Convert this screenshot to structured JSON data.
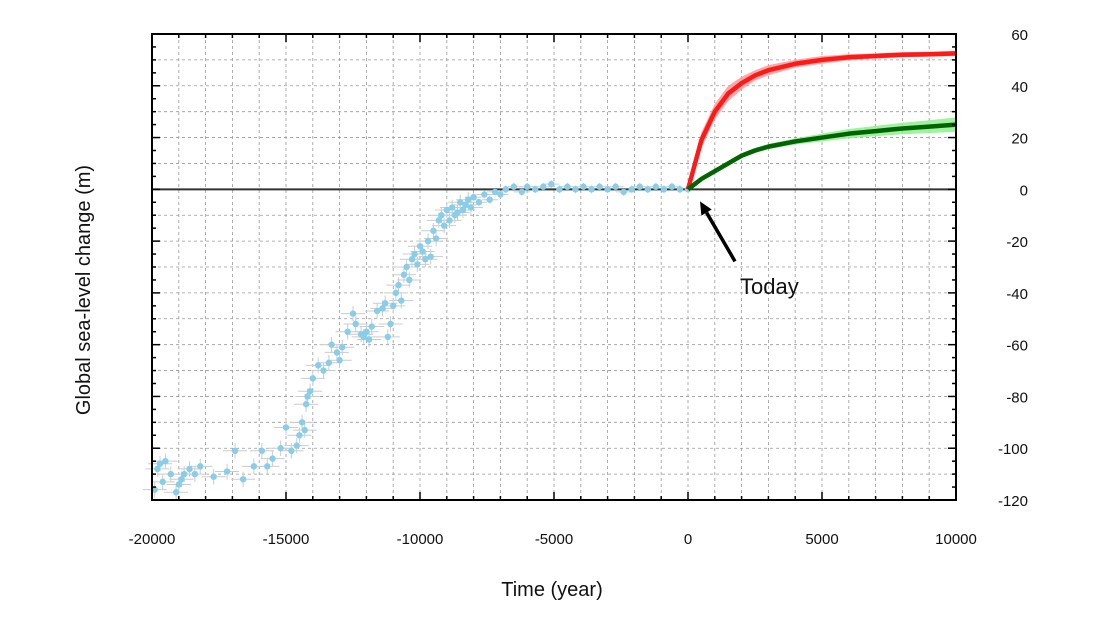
{
  "chart_data": {
    "type": "scatter",
    "xlabel": "Time (year)",
    "ylabel": "Global sea-level change (m)",
    "xlim": [
      -20000,
      10000
    ],
    "ylim": [
      -120,
      60
    ],
    "x_ticks": [
      -20000,
      -15000,
      -10000,
      -5000,
      0,
      5000,
      10000
    ],
    "y_ticks": [
      60,
      40,
      20,
      0,
      -20,
      -40,
      -60,
      -80,
      -100,
      -120
    ],
    "y_axis_side": "right",
    "grid": true,
    "annotation": {
      "text": "Today",
      "points_to": [
        0,
        0
      ]
    },
    "colors": {
      "observations": "#87ceeb",
      "error_bars": "#cccccc",
      "red_projection": "#ff1a1a",
      "red_band": "#ff9999",
      "green_projection": "#006400",
      "green_band": "#90ee90",
      "zero_line": "#333333"
    },
    "series": [
      {
        "kind": "scatter",
        "points": [
          [
            -19900,
            -116
          ],
          [
            -19800,
            -108
          ],
          [
            -19700,
            -106
          ],
          [
            -19600,
            -113
          ],
          [
            -19500,
            -105
          ],
          [
            -19300,
            -110
          ],
          [
            -19100,
            -117
          ],
          [
            -19000,
            -114
          ],
          [
            -18900,
            -112
          ],
          [
            -18800,
            -110
          ],
          [
            -18600,
            -108
          ],
          [
            -18400,
            -110
          ],
          [
            -18200,
            -107
          ],
          [
            -17700,
            -111
          ],
          [
            -17200,
            -109
          ],
          [
            -16900,
            -101
          ],
          [
            -16600,
            -112
          ],
          [
            -16200,
            -107
          ],
          [
            -15900,
            -101
          ],
          [
            -15700,
            -107
          ],
          [
            -15500,
            -104
          ],
          [
            -15200,
            -100
          ],
          [
            -15000,
            -92
          ],
          [
            -14800,
            -101
          ],
          [
            -14600,
            -99
          ],
          [
            -14500,
            -95
          ],
          [
            -14400,
            -90
          ],
          [
            -14300,
            -93
          ],
          [
            -14250,
            -83
          ],
          [
            -14200,
            -80
          ],
          [
            -14100,
            -78
          ],
          [
            -14000,
            -73
          ],
          [
            -13800,
            -68
          ],
          [
            -13600,
            -70
          ],
          [
            -13400,
            -67
          ],
          [
            -13300,
            -60
          ],
          [
            -13100,
            -63
          ],
          [
            -13000,
            -66
          ],
          [
            -12900,
            -61
          ],
          [
            -12700,
            -55
          ],
          [
            -12500,
            -48
          ],
          [
            -12400,
            -52
          ],
          [
            -12200,
            -56
          ],
          [
            -12100,
            -57
          ],
          [
            -12000,
            -55
          ],
          [
            -11900,
            -58
          ],
          [
            -11800,
            -53
          ],
          [
            -11600,
            -47
          ],
          [
            -11400,
            -46
          ],
          [
            -11300,
            -44
          ],
          [
            -11200,
            -57
          ],
          [
            -11100,
            -52
          ],
          [
            -11000,
            -45
          ],
          [
            -10900,
            -40
          ],
          [
            -10800,
            -37
          ],
          [
            -10700,
            -43
          ],
          [
            -10600,
            -33
          ],
          [
            -10500,
            -30
          ],
          [
            -10400,
            -35
          ],
          [
            -10300,
            -27
          ],
          [
            -10200,
            -25
          ],
          [
            -10100,
            -29
          ],
          [
            -10000,
            -22
          ],
          [
            -9900,
            -24
          ],
          [
            -9800,
            -27
          ],
          [
            -9700,
            -20
          ],
          [
            -9600,
            -26
          ],
          [
            -9500,
            -16
          ],
          [
            -9400,
            -19
          ],
          [
            -9300,
            -12
          ],
          [
            -9200,
            -10
          ],
          [
            -9100,
            -14
          ],
          [
            -9000,
            -8
          ],
          [
            -8900,
            -12
          ],
          [
            -8800,
            -7
          ],
          [
            -8700,
            -10
          ],
          [
            -8600,
            -9
          ],
          [
            -8500,
            -5
          ],
          [
            -8400,
            -8
          ],
          [
            -8300,
            -6
          ],
          [
            -8200,
            -4
          ],
          [
            -8100,
            -7
          ],
          [
            -8000,
            -3
          ],
          [
            -7800,
            -5
          ],
          [
            -7600,
            -2
          ],
          [
            -7400,
            -4
          ],
          [
            -7200,
            -1
          ],
          [
            -7000,
            -2
          ],
          [
            -6800,
            0
          ],
          [
            -6500,
            1
          ],
          [
            -6200,
            -1
          ],
          [
            -6000,
            1
          ],
          [
            -5700,
            0
          ],
          [
            -5400,
            1
          ],
          [
            -5100,
            2
          ],
          [
            -4800,
            0
          ],
          [
            -4500,
            1
          ],
          [
            -4200,
            0
          ],
          [
            -3900,
            1
          ],
          [
            -3600,
            0
          ],
          [
            -3300,
            1
          ],
          [
            -3000,
            0
          ],
          [
            -2700,
            1
          ],
          [
            -2400,
            -1
          ],
          [
            -2100,
            0
          ],
          [
            -1800,
            1
          ],
          [
            -1500,
            0
          ],
          [
            -1200,
            1
          ],
          [
            -900,
            0
          ],
          [
            -600,
            1
          ],
          [
            -300,
            0
          ],
          [
            0,
            0
          ]
        ]
      },
      {
        "kind": "line",
        "color_key": "red",
        "x": [
          0,
          500,
          1000,
          1500,
          2000,
          2500,
          3000,
          4000,
          5000,
          6000,
          7000,
          8000,
          9000,
          10000
        ],
        "y": [
          0,
          19,
          30,
          37,
          41,
          44,
          46,
          48.5,
          50,
          51,
          51.5,
          52,
          52.2,
          52.5
        ],
        "band": [
          2,
          3,
          3,
          3,
          2.5,
          2,
          2,
          1.5,
          1.5,
          1.2,
          1,
          1,
          1,
          1
        ]
      },
      {
        "kind": "line",
        "color_key": "green",
        "x": [
          0,
          500,
          1000,
          1500,
          2000,
          2500,
          3000,
          4000,
          5000,
          6000,
          7000,
          8000,
          9000,
          10000
        ],
        "y": [
          0,
          4,
          7,
          10,
          13,
          15,
          16.5,
          18.5,
          20,
          21.5,
          22.5,
          23.5,
          24.2,
          25
        ],
        "band": [
          0.5,
          0.8,
          1,
          1,
          1,
          1,
          1,
          1.2,
          1.5,
          1.8,
          2,
          2.2,
          2.5,
          2.8
        ]
      }
    ]
  }
}
